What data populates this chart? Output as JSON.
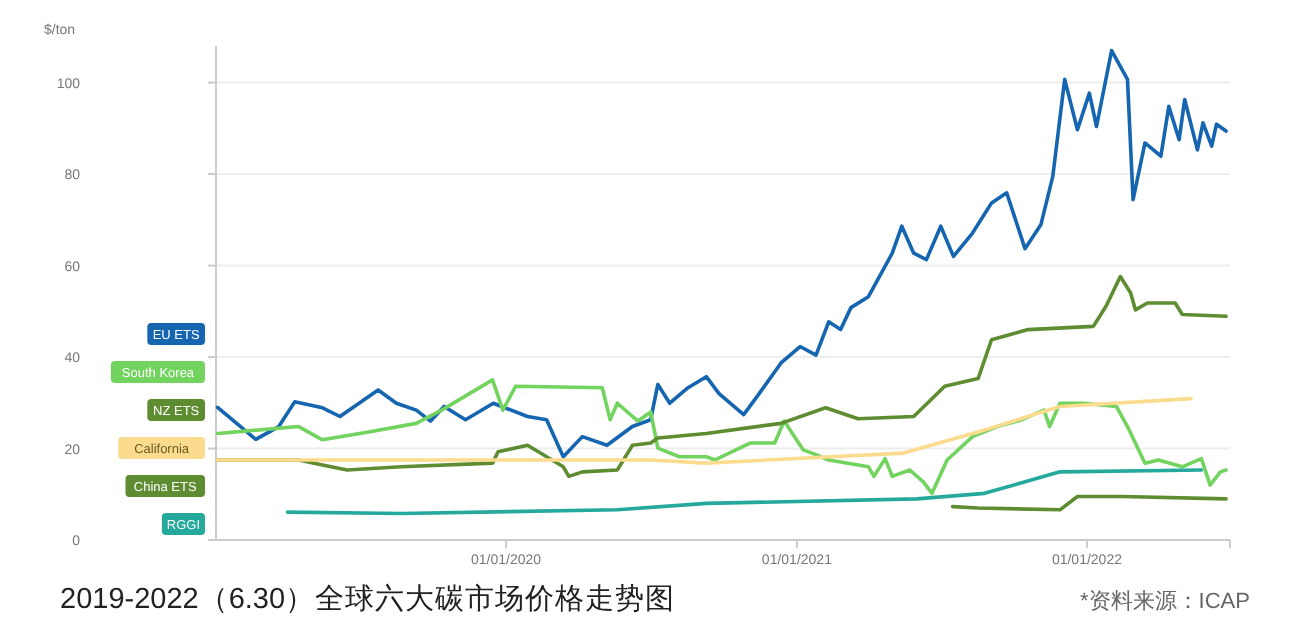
{
  "chart_data": {
    "type": "line",
    "title": "2019-2022（6.30）全球六大碳市场价格走势图",
    "ylabel": "$/ton",
    "annotations": [
      "*资料来源：ICAP"
    ],
    "xlim": [
      "2019-01-01",
      "2022-06-30"
    ],
    "ylim": [
      0,
      108
    ],
    "xticks": [
      {
        "value": "2020-01-01",
        "label": "01/01/2020"
      },
      {
        "value": "2021-01-01",
        "label": "01/01/2021"
      },
      {
        "value": "2022-01-01",
        "label": "01/01/2022"
      }
    ],
    "yticks": [
      0,
      20,
      40,
      60,
      80,
      100
    ],
    "grid": "y",
    "legend": "left",
    "marker": "none",
    "line_style": "solid",
    "series": [
      {
        "name": "EU ETS",
        "color": "#1565b0",
        "x": [
          "2019-01-03",
          "2019-02-20",
          "2019-03-21",
          "2019-04-10",
          "2019-05-15",
          "2019-06-06",
          "2019-07-24",
          "2019-08-16",
          "2019-09-10",
          "2019-09-28",
          "2019-10-15",
          "2019-11-11",
          "2019-12-16",
          "2020-01-28",
          "2020-02-21",
          "2020-03-13",
          "2020-04-06",
          "2020-05-07",
          "2020-06-08",
          "2020-07-01",
          "2020-07-10",
          "2020-07-25",
          "2020-08-17",
          "2020-09-09",
          "2020-09-25",
          "2020-10-26",
          "2020-11-12",
          "2020-12-12",
          "2021-01-05",
          "2021-01-25",
          "2021-02-10",
          "2021-02-25",
          "2021-03-10",
          "2021-04-01",
          "2021-05-01",
          "2021-05-13",
          "2021-05-28",
          "2021-06-13",
          "2021-07-01",
          "2021-07-17",
          "2021-08-10",
          "2021-09-03",
          "2021-09-22",
          "2021-10-15",
          "2021-11-04",
          "2021-11-19",
          "2021-12-04",
          "2021-12-20",
          "2022-01-04",
          "2022-01-13",
          "2022-02-01",
          "2022-02-21",
          "2022-02-28",
          "2022-03-15",
          "2022-04-04",
          "2022-04-14",
          "2022-04-27",
          "2022-05-04",
          "2022-05-20",
          "2022-05-27",
          "2022-06-07",
          "2022-06-13",
          "2022-06-25"
        ],
        "values": [
          29,
          22,
          24.8,
          30.2,
          28.9,
          27,
          32.8,
          29.9,
          28.4,
          26,
          29.2,
          26.3,
          29.9,
          27,
          26.3,
          18.2,
          22.6,
          20.7,
          24.8,
          26.3,
          34,
          29.9,
          33.3,
          35.7,
          32,
          27.4,
          31.4,
          38.7,
          42.3,
          40.4,
          47.7,
          46,
          50.8,
          53.2,
          62.7,
          68.6,
          62.7,
          61.3,
          68.6,
          62,
          67.1,
          73.7,
          75.9,
          63.7,
          68.9,
          79.5,
          100.7,
          89.7,
          97.7,
          90.4,
          107,
          100.7,
          74.4,
          86.8,
          83.9,
          94.8,
          87.5,
          96.3,
          85.3,
          91.2,
          86.1,
          90.9,
          89.4
        ]
      },
      {
        "name": "South Korea",
        "color": "#72d35f",
        "x": [
          "2019-01-03",
          "2019-04-15",
          "2019-05-15",
          "2019-07-12",
          "2019-09-10",
          "2019-10-12",
          "2019-12-15",
          "2019-12-28",
          "2020-01-13",
          "2020-05-01",
          "2020-05-11",
          "2020-05-20",
          "2020-06-15",
          "2020-07-01",
          "2020-07-10",
          "2020-08-06",
          "2020-09-09",
          "2020-09-20",
          "2020-11-03",
          "2020-12-04",
          "2020-12-16",
          "2021-01-09",
          "2021-01-20",
          "2021-02-10",
          "2021-04-01",
          "2021-04-08",
          "2021-04-22",
          "2021-05-01",
          "2021-05-23",
          "2021-06-09",
          "2021-06-20",
          "2021-07-09",
          "2021-08-10",
          "2021-09-10",
          "2021-10-11",
          "2021-11-08",
          "2021-11-15",
          "2021-11-28",
          "2021-12-28",
          "2022-02-07",
          "2022-02-21",
          "2022-03-15",
          "2022-04-01",
          "2022-05-01",
          "2022-05-25",
          "2022-06-05",
          "2022-06-18",
          "2022-06-25"
        ],
        "values": [
          23.3,
          24.8,
          21.9,
          23.6,
          25.5,
          28.4,
          35,
          28.4,
          33.6,
          33.3,
          26.3,
          29.9,
          26,
          28,
          20.1,
          18.2,
          18.2,
          17.5,
          21.2,
          21.2,
          26,
          19.7,
          19,
          17.5,
          16,
          13.9,
          17.8,
          13.9,
          15.3,
          12.7,
          10.2,
          17.5,
          22.6,
          24.8,
          26.3,
          28.4,
          24.8,
          29.9,
          29.9,
          29.2,
          24.8,
          16.8,
          17.5,
          16,
          17.8,
          12,
          14.9,
          15.3
        ]
      },
      {
        "name": "NZ ETS",
        "color": "#5e8c31",
        "x": [
          "2019-01-03",
          "2019-04-15",
          "2019-05-18",
          "2019-06-15",
          "2019-08-22",
          "2019-12-15",
          "2019-12-22",
          "2020-01-28",
          "2020-03-13",
          "2020-03-20",
          "2020-04-06",
          "2020-05-20",
          "2020-06-08",
          "2020-07-01",
          "2020-07-10",
          "2020-09-09",
          "2020-12-12",
          "2021-02-06",
          "2021-03-19",
          "2021-05-28",
          "2021-07-06",
          "2021-08-17",
          "2021-09-03",
          "2021-10-19",
          "2022-01-09",
          "2022-01-25",
          "2022-02-12",
          "2022-02-25",
          "2022-03-03",
          "2022-03-18",
          "2022-04-22",
          "2022-05-01",
          "2022-06-25"
        ],
        "values": [
          17.5,
          17.5,
          16.3,
          15.3,
          16,
          16.8,
          19.3,
          20.7,
          16,
          13.9,
          14.9,
          15.3,
          20.7,
          21.2,
          22.3,
          23.3,
          25.5,
          28.9,
          26.5,
          27,
          33.6,
          35.3,
          43.8,
          46,
          46.7,
          51.1,
          57.6,
          54,
          50.3,
          51.8,
          51.8,
          49.3,
          48.9
        ]
      },
      {
        "name": "California",
        "color": "#fbdc8e",
        "x": [
          "2019-01-03",
          "2020-07-01",
          "2020-09-09",
          "2021-05-15",
          "2021-08-17",
          "2021-11-28",
          "2022-05-12"
        ],
        "values": [
          17.5,
          17.5,
          16.8,
          19,
          23.6,
          29.2,
          30.9
        ]
      },
      {
        "name": "RGGI",
        "color": "#25a99c",
        "x": [
          "2019-04-01",
          "2019-08-22",
          "2020-05-20",
          "2020-09-09",
          "2021-06-01",
          "2021-08-25",
          "2021-11-28",
          "2022-05-25"
        ],
        "values": [
          6.1,
          5.8,
          6.6,
          8,
          9,
          10.2,
          14.9,
          15.3
        ]
      },
      {
        "name": "China ETS",
        "color": "#5e8c31",
        "x": [
          "2021-07-16",
          "2021-08-17",
          "2021-11-28",
          "2021-12-20",
          "2022-02-14",
          "2022-06-25"
        ],
        "values": [
          7.3,
          7,
          6.6,
          9.5,
          9.5,
          9
        ]
      }
    ]
  }
}
